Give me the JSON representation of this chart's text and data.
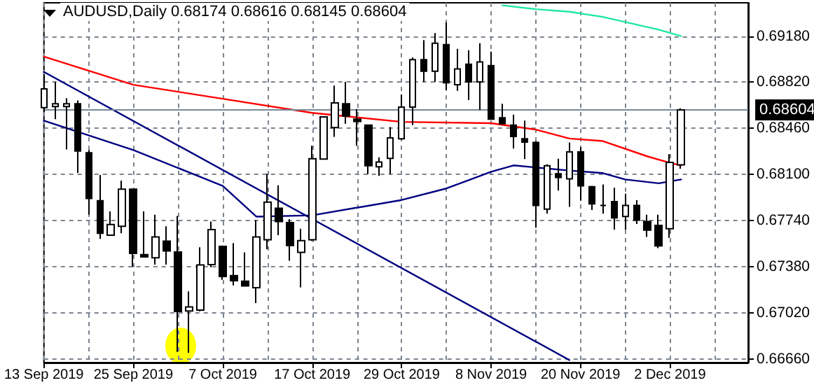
{
  "chart_data": {
    "type": "candlestick",
    "title": "AUDUSD,Daily 0.68174 0.68616 0.68145 0.68604",
    "color": "#000000",
    "categories": [
      "13 Sep 2019",
      null,
      null,
      null,
      null,
      null,
      null,
      null,
      "25 Sep 2019",
      null,
      null,
      null,
      null,
      null,
      null,
      null,
      "7 Oct 2019",
      null,
      null,
      null,
      null,
      null,
      null,
      null,
      "17 Oct 2019",
      null,
      null,
      null,
      null,
      null,
      null,
      null,
      "29 Oct 2019",
      null,
      null,
      null,
      null,
      null,
      null,
      null,
      "8 Nov 2019",
      null,
      null,
      null,
      null,
      null,
      null,
      null,
      "20 Nov 2019",
      null,
      null,
      null,
      null,
      null,
      null,
      null,
      "2 Dec 2019",
      null,
      null,
      null,
      null,
      null,
      null,
      null
    ],
    "ohlc": [
      [
        0.68622,
        0.68877,
        0.68586,
        0.68768
      ],
      [
        0.68629,
        0.68822,
        0.68531,
        0.68651
      ],
      [
        0.68629,
        0.68695,
        0.68294,
        0.68651
      ],
      [
        0.68651,
        0.68677,
        0.68112,
        0.68283
      ],
      [
        0.68269,
        0.6829,
        0.67785,
        0.67912
      ],
      [
        0.67894,
        0.68095,
        0.67596,
        0.6764
      ],
      [
        0.67625,
        0.67811,
        0.6762,
        0.67709
      ],
      [
        0.67695,
        0.68051,
        0.6764,
        0.67985
      ],
      [
        0.67985,
        0.6799,
        0.67378,
        0.67483
      ],
      [
        0.67473,
        0.67811,
        0.6745,
        0.67455
      ],
      [
        0.67449,
        0.67785,
        0.67396,
        0.67611
      ],
      [
        0.67578,
        0.67695,
        0.67396,
        0.67502
      ],
      [
        0.67494,
        0.67775,
        0.66713,
        0.67029
      ],
      [
        0.67033,
        0.67186,
        0.66706,
        0.67065
      ],
      [
        0.6704,
        0.67531,
        0.6703,
        0.67393
      ],
      [
        0.67396,
        0.67731,
        0.67375,
        0.67669
      ],
      [
        0.67538,
        0.67545,
        0.67276,
        0.67302
      ],
      [
        0.67309,
        0.67564,
        0.67233,
        0.67269
      ],
      [
        0.67265,
        0.67491,
        0.67225,
        0.67229
      ],
      [
        0.67215,
        0.67742,
        0.67095,
        0.67611
      ],
      [
        0.67589,
        0.68105,
        0.67516,
        0.67883
      ],
      [
        0.67836,
        0.68014,
        0.67625,
        0.67731
      ],
      [
        0.67724,
        0.67749,
        0.67425,
        0.67545
      ],
      [
        0.67491,
        0.67676,
        0.67218,
        0.67582
      ],
      [
        0.67589,
        0.68324,
        0.6758,
        0.68222
      ],
      [
        0.6822,
        0.68555,
        0.68215,
        0.68549
      ],
      [
        0.68465,
        0.68793,
        0.68393,
        0.68658
      ],
      [
        0.68651,
        0.68822,
        0.68495,
        0.68556
      ],
      [
        0.68531,
        0.68611,
        0.68323,
        0.68513
      ],
      [
        0.68484,
        0.6849,
        0.68102,
        0.68167
      ],
      [
        0.6816,
        0.68233,
        0.68088,
        0.68196
      ],
      [
        0.68225,
        0.68469,
        0.68102,
        0.68385
      ],
      [
        0.68378,
        0.68724,
        0.6837,
        0.68625
      ],
      [
        0.68625,
        0.69014,
        0.68484,
        0.68996
      ],
      [
        0.68996,
        0.69149,
        0.68822,
        0.68905
      ],
      [
        0.68905,
        0.69204,
        0.68822,
        0.69124
      ],
      [
        0.69113,
        0.69287,
        0.6876,
        0.68815
      ],
      [
        0.688,
        0.6908,
        0.68753,
        0.68924
      ],
      [
        0.6896,
        0.69069,
        0.6868,
        0.68822
      ],
      [
        0.68822,
        0.69124,
        0.68604,
        0.68978
      ],
      [
        0.68949,
        0.69058,
        0.68525,
        0.68531
      ],
      [
        0.68542,
        0.68651,
        0.6849,
        0.68495
      ],
      [
        0.68484,
        0.68567,
        0.68302,
        0.68396
      ],
      [
        0.68378,
        0.6852,
        0.6822,
        0.68352
      ],
      [
        0.68349,
        0.6836,
        0.67684,
        0.67858
      ],
      [
        0.67829,
        0.68178,
        0.67793,
        0.68167
      ],
      [
        0.68105,
        0.68222,
        0.67974,
        0.68076
      ],
      [
        0.68065,
        0.68349,
        0.67847,
        0.68276
      ],
      [
        0.68276,
        0.68313,
        0.67894,
        0.68011
      ],
      [
        0.68003,
        0.6801,
        0.67822,
        0.67869
      ],
      [
        0.67858,
        0.68022,
        0.67793,
        0.67858
      ],
      [
        0.67887,
        0.67996,
        0.67669,
        0.6776
      ],
      [
        0.67771,
        0.67949,
        0.67669,
        0.67858
      ],
      [
        0.67858,
        0.67898,
        0.67713,
        0.67742
      ],
      [
        0.67731,
        0.67785,
        0.67611,
        0.67665
      ],
      [
        0.67702,
        0.67785,
        0.67524,
        0.67542
      ],
      [
        0.67676,
        0.68258,
        0.67604,
        0.68193
      ],
      [
        0.68174,
        0.68616,
        0.68145,
        0.68604
      ],
      null,
      null,
      null,
      null,
      null,
      null
    ],
    "series": [
      {
        "type": "line",
        "color": "#ff0000",
        "values": [
          0.6902,
          null,
          null,
          null,
          null,
          null,
          null,
          null,
          0.688,
          null,
          null,
          null,
          null,
          null,
          null,
          null,
          0.6869,
          null,
          null,
          null,
          null,
          null,
          null,
          null,
          0.6858,
          null,
          null,
          null,
          null,
          null,
          null,
          null,
          0.6851,
          null,
          null,
          null,
          null,
          null,
          null,
          null,
          0.685,
          null,
          null,
          null,
          0.6845,
          null,
          null,
          0.6838,
          null,
          null,
          0.6836,
          null,
          null,
          null,
          0.6824,
          null,
          0.6819,
          0.6817,
          null,
          null,
          null,
          null,
          null,
          null
        ]
      },
      {
        "type": "line",
        "color": "#000080",
        "values": [
          0.6852,
          null,
          null,
          null,
          null,
          null,
          null,
          null,
          0.6829,
          null,
          null,
          null,
          null,
          null,
          null,
          null,
          0.6801,
          null,
          null,
          0.6777,
          null,
          null,
          null,
          null,
          0.6778,
          null,
          null,
          null,
          null,
          null,
          null,
          null,
          0.679,
          null,
          null,
          null,
          0.6799,
          null,
          null,
          null,
          0.6812,
          null,
          0.6817,
          null,
          null,
          null,
          null,
          0.6813,
          null,
          null,
          0.6811,
          null,
          0.6806,
          null,
          null,
          0.6803,
          null,
          0.6806,
          null,
          null,
          null,
          null,
          null,
          null
        ]
      },
      {
        "type": "line",
        "color": "#20e8a0",
        "values": [
          null,
          null,
          null,
          null,
          null,
          null,
          null,
          null,
          null,
          null,
          null,
          null,
          null,
          null,
          null,
          null,
          null,
          null,
          null,
          null,
          null,
          null,
          null,
          null,
          null,
          null,
          null,
          null,
          null,
          null,
          null,
          null,
          null,
          null,
          null,
          null,
          null,
          null,
          null,
          null,
          null,
          0.6942,
          null,
          null,
          0.6939,
          null,
          null,
          0.6937,
          null,
          null,
          0.6933,
          null,
          null,
          0.6927,
          null,
          0.6923,
          null,
          0.6918,
          null,
          null,
          null,
          null,
          null,
          null
        ]
      },
      {
        "type": "line",
        "color": "#000080",
        "values": [
          0.689,
          null,
          null,
          null,
          null,
          null,
          null,
          null,
          null,
          null,
          null,
          null,
          null,
          null,
          null,
          null,
          null,
          null,
          null,
          null,
          null,
          null,
          null,
          null,
          null,
          null,
          null,
          null,
          null,
          null,
          null,
          null,
          null,
          null,
          null,
          null,
          null,
          null,
          null,
          null,
          null,
          null,
          null,
          null,
          null,
          null,
          null,
          0.6665,
          null,
          null,
          null,
          null,
          null,
          null,
          null,
          null,
          null,
          null,
          null,
          null,
          null,
          null,
          null,
          null
        ]
      }
    ],
    "ylim": [
      0.6663,
      0.6944
    ],
    "yticks": [
      {
        "value": 0.6666,
        "label": "0.66660"
      },
      {
        "value": 0.6702,
        "label": "0.67020"
      },
      {
        "value": 0.6738,
        "label": "0.67380"
      },
      {
        "value": 0.6774,
        "label": "0.67740"
      },
      {
        "value": 0.681,
        "label": "0.68100"
      },
      {
        "value": 0.6846,
        "label": "0.68460"
      },
      {
        "value": 0.6882,
        "label": "0.68820"
      },
      {
        "value": 0.6918,
        "label": "0.69180"
      }
    ],
    "ref_lines": [
      {
        "axis": "y",
        "value": 0.68604,
        "label": "0.68604",
        "color": "#778899"
      }
    ],
    "grid": true
  }
}
